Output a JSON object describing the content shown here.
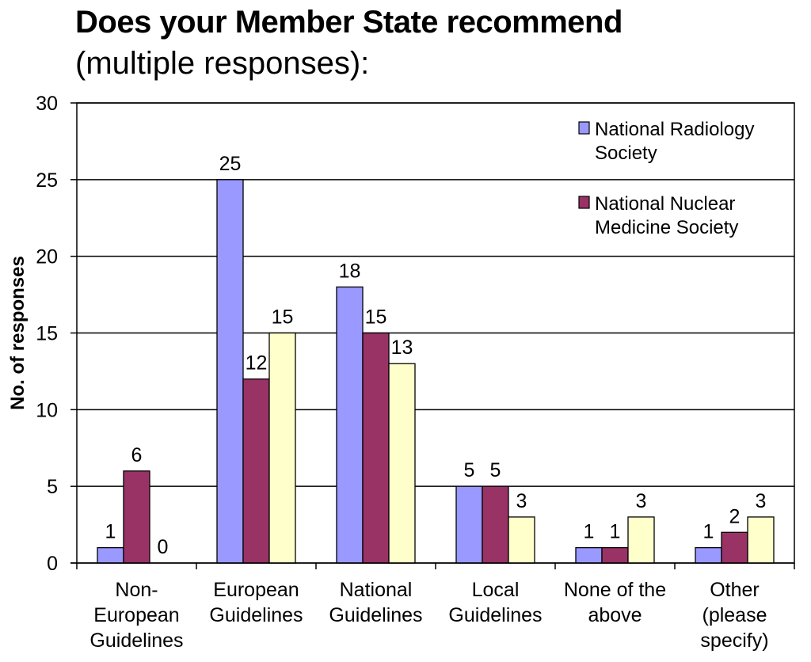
{
  "title": "Does your Member State recommend",
  "subtitle": "(multiple responses):",
  "chart_data": {
    "type": "bar",
    "ylabel": "No. of responses",
    "xlabel": "",
    "ylim": [
      0,
      30
    ],
    "yticks": [
      0,
      5,
      10,
      15,
      20,
      25,
      30
    ],
    "grid": true,
    "legend_position": "top-right",
    "categories": [
      [
        "Non-",
        "European",
        "Guidelines"
      ],
      [
        "European",
        "Guidelines"
      ],
      [
        "National",
        "Guidelines"
      ],
      [
        "Local",
        "Guidelines"
      ],
      [
        "None of the",
        "above"
      ],
      [
        "Other",
        "(please",
        "specify)"
      ]
    ],
    "series": [
      {
        "name": "National Radiology Society",
        "legend_lines": [
          "National Radiology",
          "Society"
        ],
        "color": "#9999ff",
        "values": [
          1,
          25,
          18,
          5,
          1,
          1
        ]
      },
      {
        "name": "National Nuclear Medicine Society",
        "legend_lines": [
          "National Nuclear",
          "Medicine Society"
        ],
        "color": "#993366",
        "values": [
          6,
          12,
          15,
          5,
          1,
          2
        ]
      },
      {
        "color": "#ffffcc",
        "values": [
          0,
          15,
          13,
          3,
          3,
          3
        ]
      }
    ]
  }
}
